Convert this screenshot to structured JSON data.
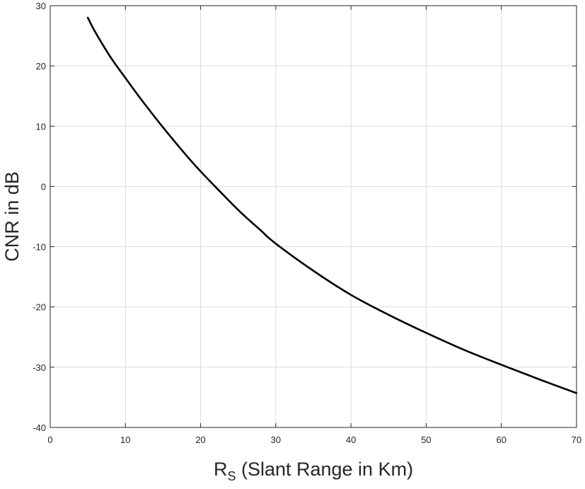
{
  "chart_data": {
    "type": "line",
    "title": "",
    "xlabel": {
      "main": "R",
      "subscript": "S",
      "rest": " (Slant Range in Km)"
    },
    "ylabel": "CNR in dB",
    "xlim": [
      0,
      70
    ],
    "ylim": [
      -40,
      30
    ],
    "xticks": [
      "0",
      "10",
      "20",
      "30",
      "40",
      "50",
      "60",
      "70"
    ],
    "yticks": [
      "30",
      "20",
      "10",
      "0",
      "-10",
      "-20",
      "-30",
      "-40"
    ],
    "grid": true,
    "series": [
      {
        "color": "#000000",
        "x": [
          5,
          6,
          8,
          10,
          12,
          15,
          18,
          20,
          22,
          25,
          28,
          30,
          35,
          40,
          45,
          50,
          55,
          60,
          65,
          70
        ],
        "y": [
          28.0,
          25.6,
          21.5,
          18.0,
          14.6,
          9.8,
          5.3,
          2.5,
          -0.1,
          -3.9,
          -7.3,
          -9.5,
          -14.0,
          -18.0,
          -21.3,
          -24.3,
          -27.1,
          -29.6,
          -32.0,
          -34.3
        ]
      }
    ]
  }
}
